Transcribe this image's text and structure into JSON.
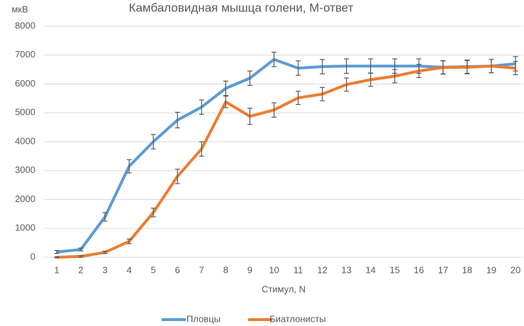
{
  "chart_data": {
    "type": "line",
    "title": "Камбаловидная мышца голени, М-ответ",
    "y_label": "мкВ",
    "x_label": "Стимул, N",
    "categories": [
      "1",
      "2",
      "3",
      "4",
      "5",
      "6",
      "7",
      "8",
      "9",
      "10",
      "11",
      "12",
      "13",
      "14",
      "15",
      "16",
      "17",
      "18",
      "19",
      "20"
    ],
    "series": [
      {
        "name": "Пловцы",
        "color": "#5b9bd5",
        "values": [
          180,
          270,
          1400,
          3150,
          4000,
          4750,
          5200,
          5850,
          6200,
          6850,
          6550,
          6600,
          6620,
          6620,
          6620,
          6620,
          6580,
          6600,
          6620,
          6700
        ],
        "errors": [
          50,
          50,
          150,
          230,
          250,
          270,
          250,
          250,
          250,
          250,
          250,
          250,
          250,
          250,
          250,
          250,
          230,
          230,
          230,
          250
        ]
      },
      {
        "name": "Биатлонисты",
        "color": "#ed7d31",
        "values": [
          0,
          30,
          170,
          550,
          1550,
          2800,
          3750,
          5380,
          4880,
          5100,
          5520,
          5650,
          5980,
          6150,
          6270,
          6450,
          6570,
          6580,
          6620,
          6550
        ],
        "errors": [
          20,
          30,
          40,
          80,
          150,
          250,
          250,
          200,
          280,
          250,
          230,
          230,
          230,
          230,
          230,
          230,
          230,
          230,
          230,
          230
        ]
      }
    ],
    "ylim": [
      0,
      8000
    ],
    "yticks": [
      0,
      1000,
      2000,
      3000,
      4000,
      5000,
      6000,
      7000,
      8000
    ],
    "grid": true,
    "legend": "bottom"
  }
}
